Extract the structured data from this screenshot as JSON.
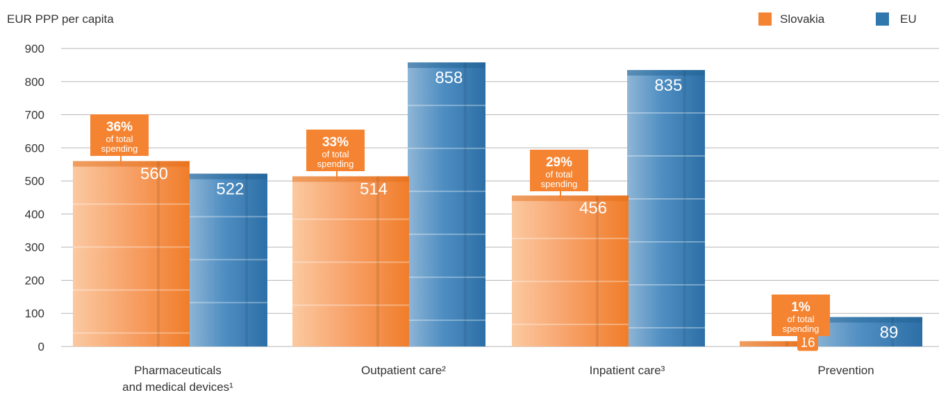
{
  "chart_data": {
    "type": "bar",
    "ylabel": "EUR PPP per capita",
    "ylim": [
      0,
      900
    ],
    "yticks": [
      0,
      100,
      200,
      300,
      400,
      500,
      600,
      700,
      800,
      900
    ],
    "grid": true,
    "legend_position": "top-right",
    "categories": [
      [
        "Pharmaceuticals",
        "and medical devices¹"
      ],
      [
        "Outpatient care²"
      ],
      [
        "Inpatient care³"
      ],
      [
        "Prevention"
      ]
    ],
    "series": [
      {
        "name": "Slovakia",
        "color": "#f58432",
        "values": [
          560,
          514,
          456,
          16
        ],
        "labels": [
          "560",
          "514",
          "456",
          "16"
        ],
        "shares": [
          {
            "pct": "36%",
            "line1": "of total",
            "line2": "spending"
          },
          {
            "pct": "33%",
            "line1": "of total",
            "line2": "spending"
          },
          {
            "pct": "29%",
            "line1": "of total",
            "line2": "spending"
          },
          {
            "pct": "1%",
            "line1": "of total",
            "line2": "spending"
          }
        ]
      },
      {
        "name": "EU",
        "color": "#2f77ad",
        "values": [
          522,
          858,
          835,
          89
        ],
        "labels": [
          "522",
          "858",
          "835",
          "89"
        ]
      }
    ]
  }
}
